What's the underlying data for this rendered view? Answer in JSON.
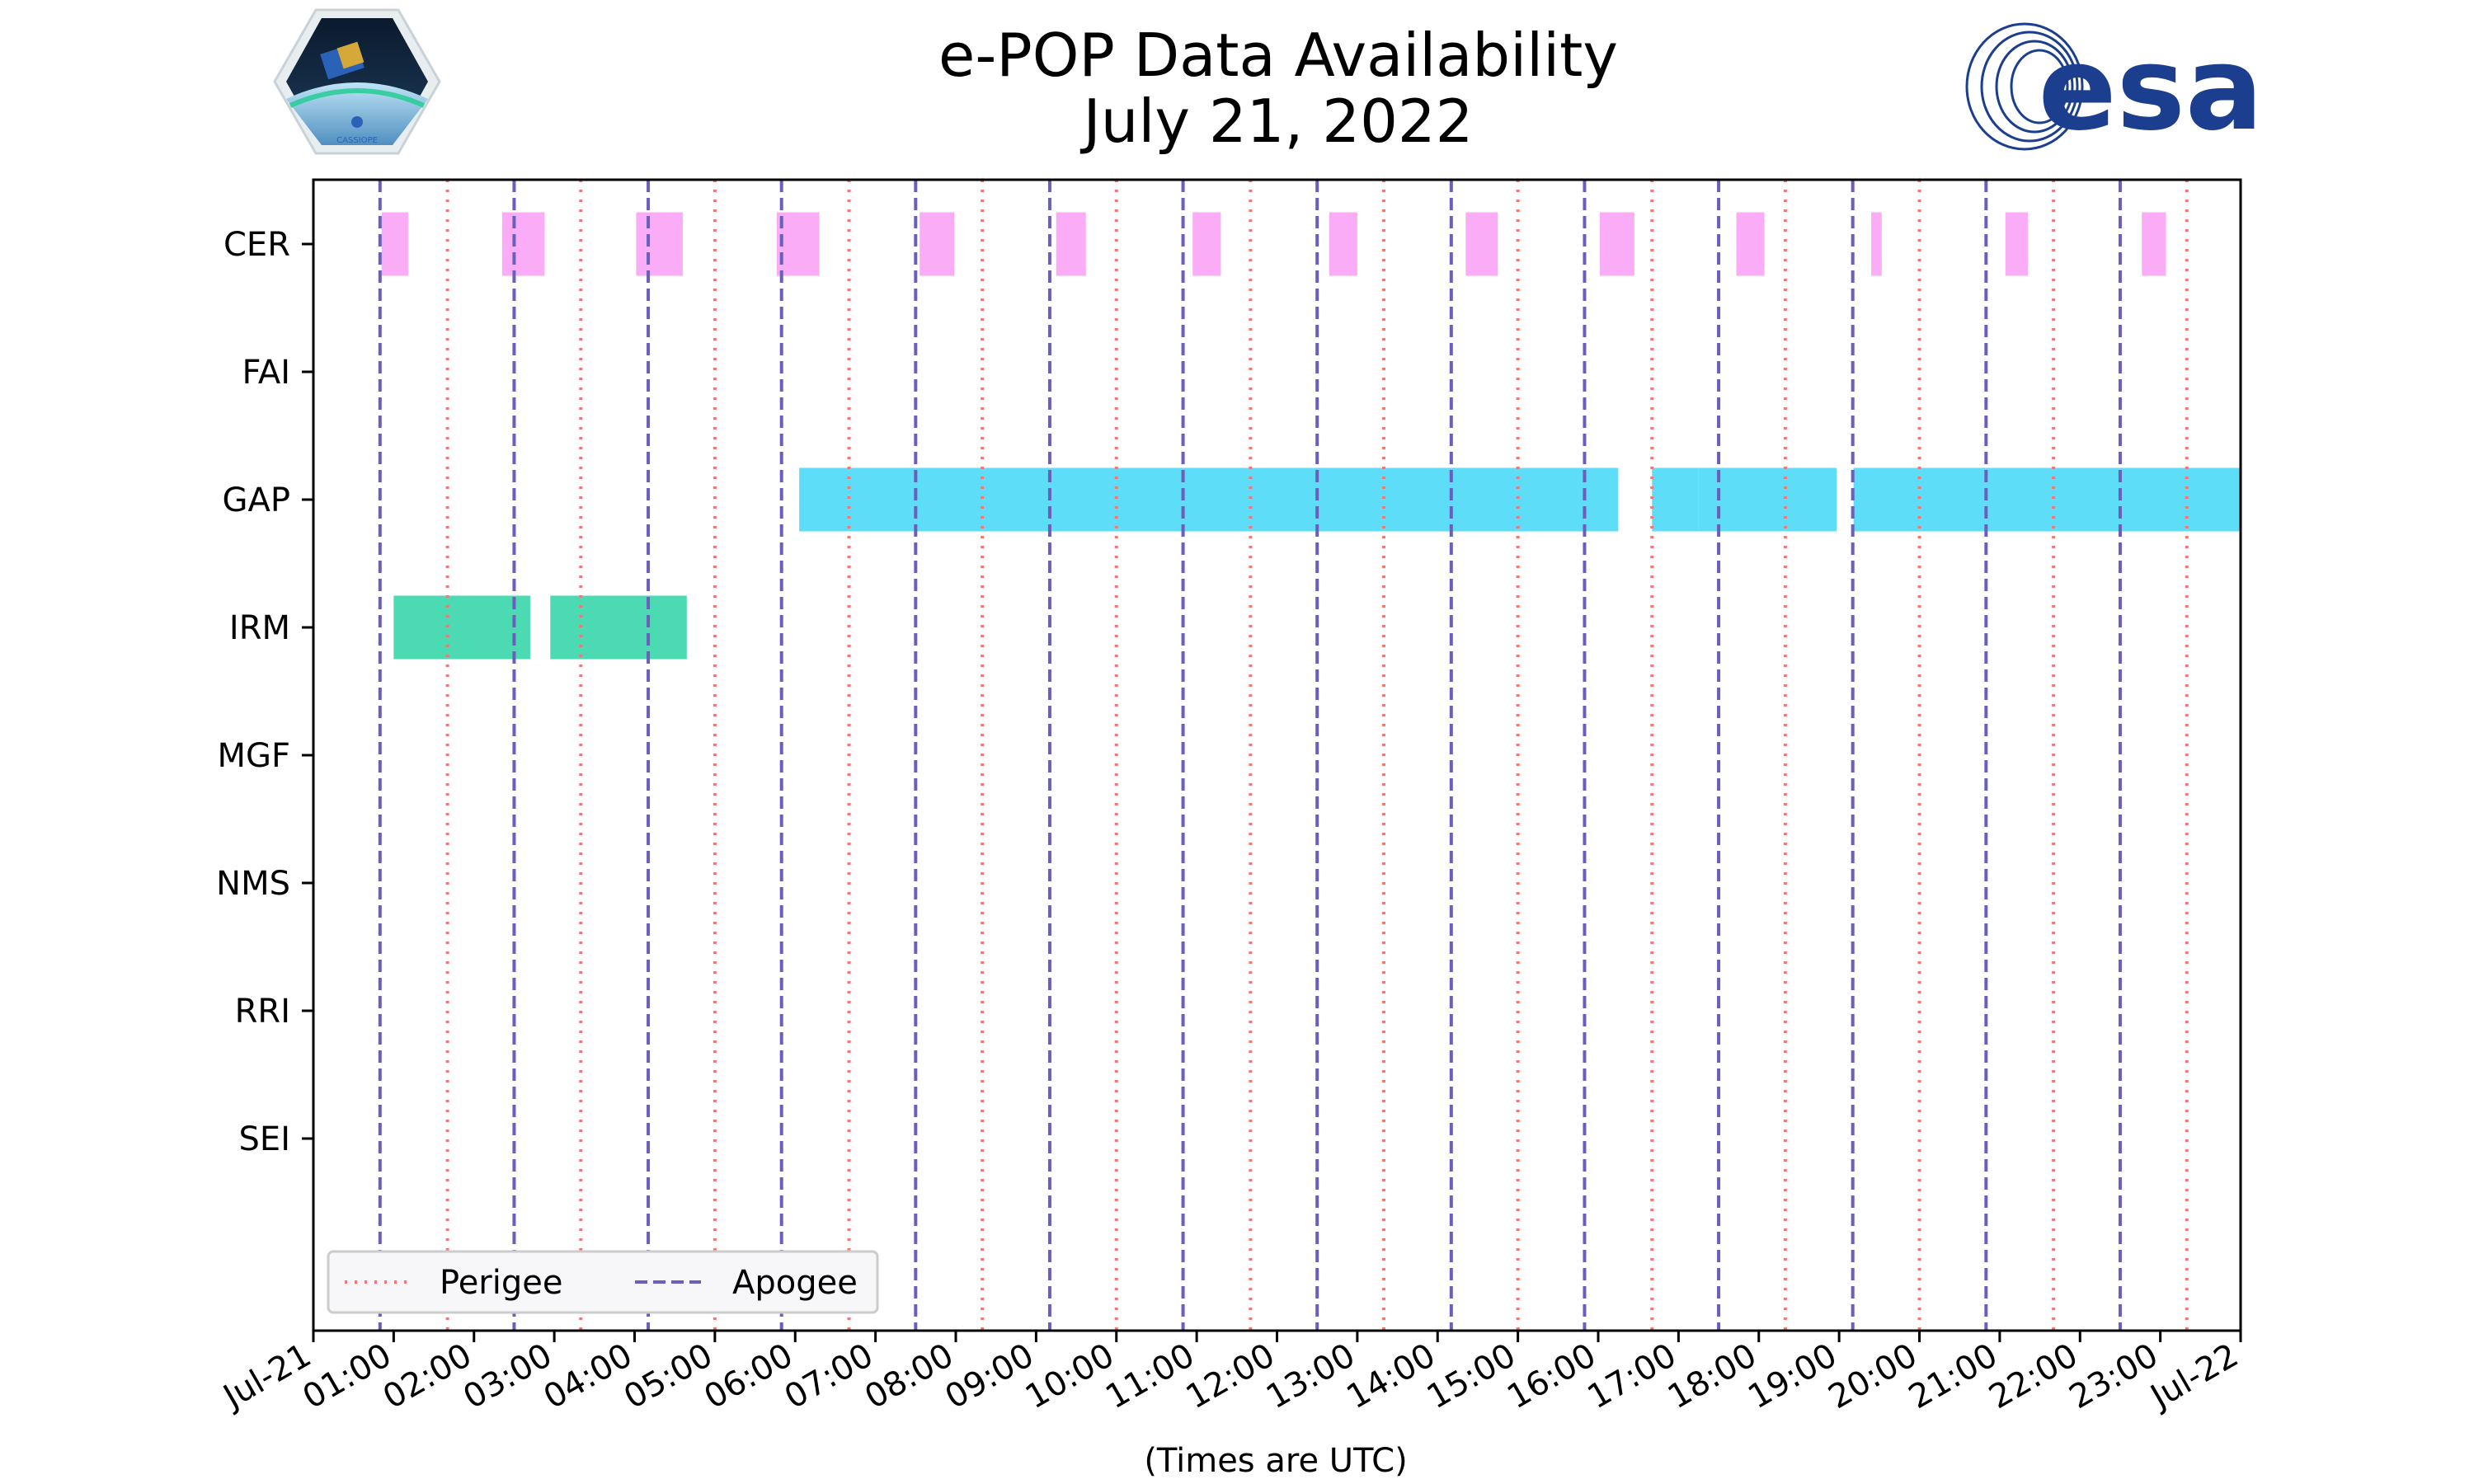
{
  "chart_data": {
    "type": "timeline",
    "title": "e-POP Data Availability",
    "subtitle": "July 21, 2022",
    "xlabel": "(Times are UTC)",
    "xlim_hours": [
      0,
      24
    ],
    "x_tick_labels": [
      "Jul-21",
      "01:00",
      "02:00",
      "03:00",
      "04:00",
      "05:00",
      "06:00",
      "07:00",
      "08:00",
      "09:00",
      "10:00",
      "11:00",
      "12:00",
      "13:00",
      "14:00",
      "15:00",
      "16:00",
      "17:00",
      "18:00",
      "19:00",
      "20:00",
      "21:00",
      "22:00",
      "23:00",
      "Jul-22"
    ],
    "categories": [
      "CER",
      "FAI",
      "GAP",
      "IRM",
      "MGF",
      "NMS",
      "RRI",
      "SEI"
    ],
    "series_colors": {
      "CER": "#fa9df5",
      "GAP": "#42d7f8",
      "IRM": "#2bd3a5"
    },
    "intervals": {
      "CER": [
        [
          0.85,
          1.18
        ],
        [
          2.35,
          2.88
        ],
        [
          4.02,
          4.6
        ],
        [
          5.77,
          6.3
        ],
        [
          7.55,
          7.98
        ],
        [
          9.25,
          9.62
        ],
        [
          10.95,
          11.3
        ],
        [
          12.65,
          13.0
        ],
        [
          14.35,
          14.75
        ],
        [
          16.02,
          16.45
        ],
        [
          17.72,
          18.07
        ],
        [
          19.4,
          19.53
        ],
        [
          21.07,
          21.35
        ],
        [
          22.77,
          23.07
        ]
      ],
      "FAI": [],
      "GAP": [
        [
          6.05,
          16.25
        ],
        [
          16.67,
          17.25
        ],
        [
          17.25,
          18.97
        ],
        [
          19.18,
          24.0
        ]
      ],
      "IRM": [
        [
          1.0,
          2.7
        ],
        [
          2.95,
          4.65
        ]
      ],
      "MGF": [],
      "NMS": [],
      "RRI": [],
      "SEI": []
    },
    "perigee_hours": [
      1.67,
      3.33,
      5.0,
      6.67,
      8.33,
      10.0,
      11.67,
      13.33,
      15.0,
      16.67,
      18.33,
      20.0,
      21.67,
      23.33
    ],
    "apogee_hours": [
      0.83,
      2.5,
      4.17,
      5.83,
      7.5,
      9.17,
      10.83,
      12.5,
      14.17,
      15.83,
      17.5,
      19.17,
      20.83,
      22.5
    ],
    "line_colors": {
      "perigee": "#f07878",
      "apogee": "#6a5fba"
    },
    "legend": {
      "placement": "bottom-left",
      "entries": [
        "Perigee",
        "Apogee"
      ]
    }
  },
  "logos": {
    "left": "CASSIOPE",
    "right": "esa"
  }
}
